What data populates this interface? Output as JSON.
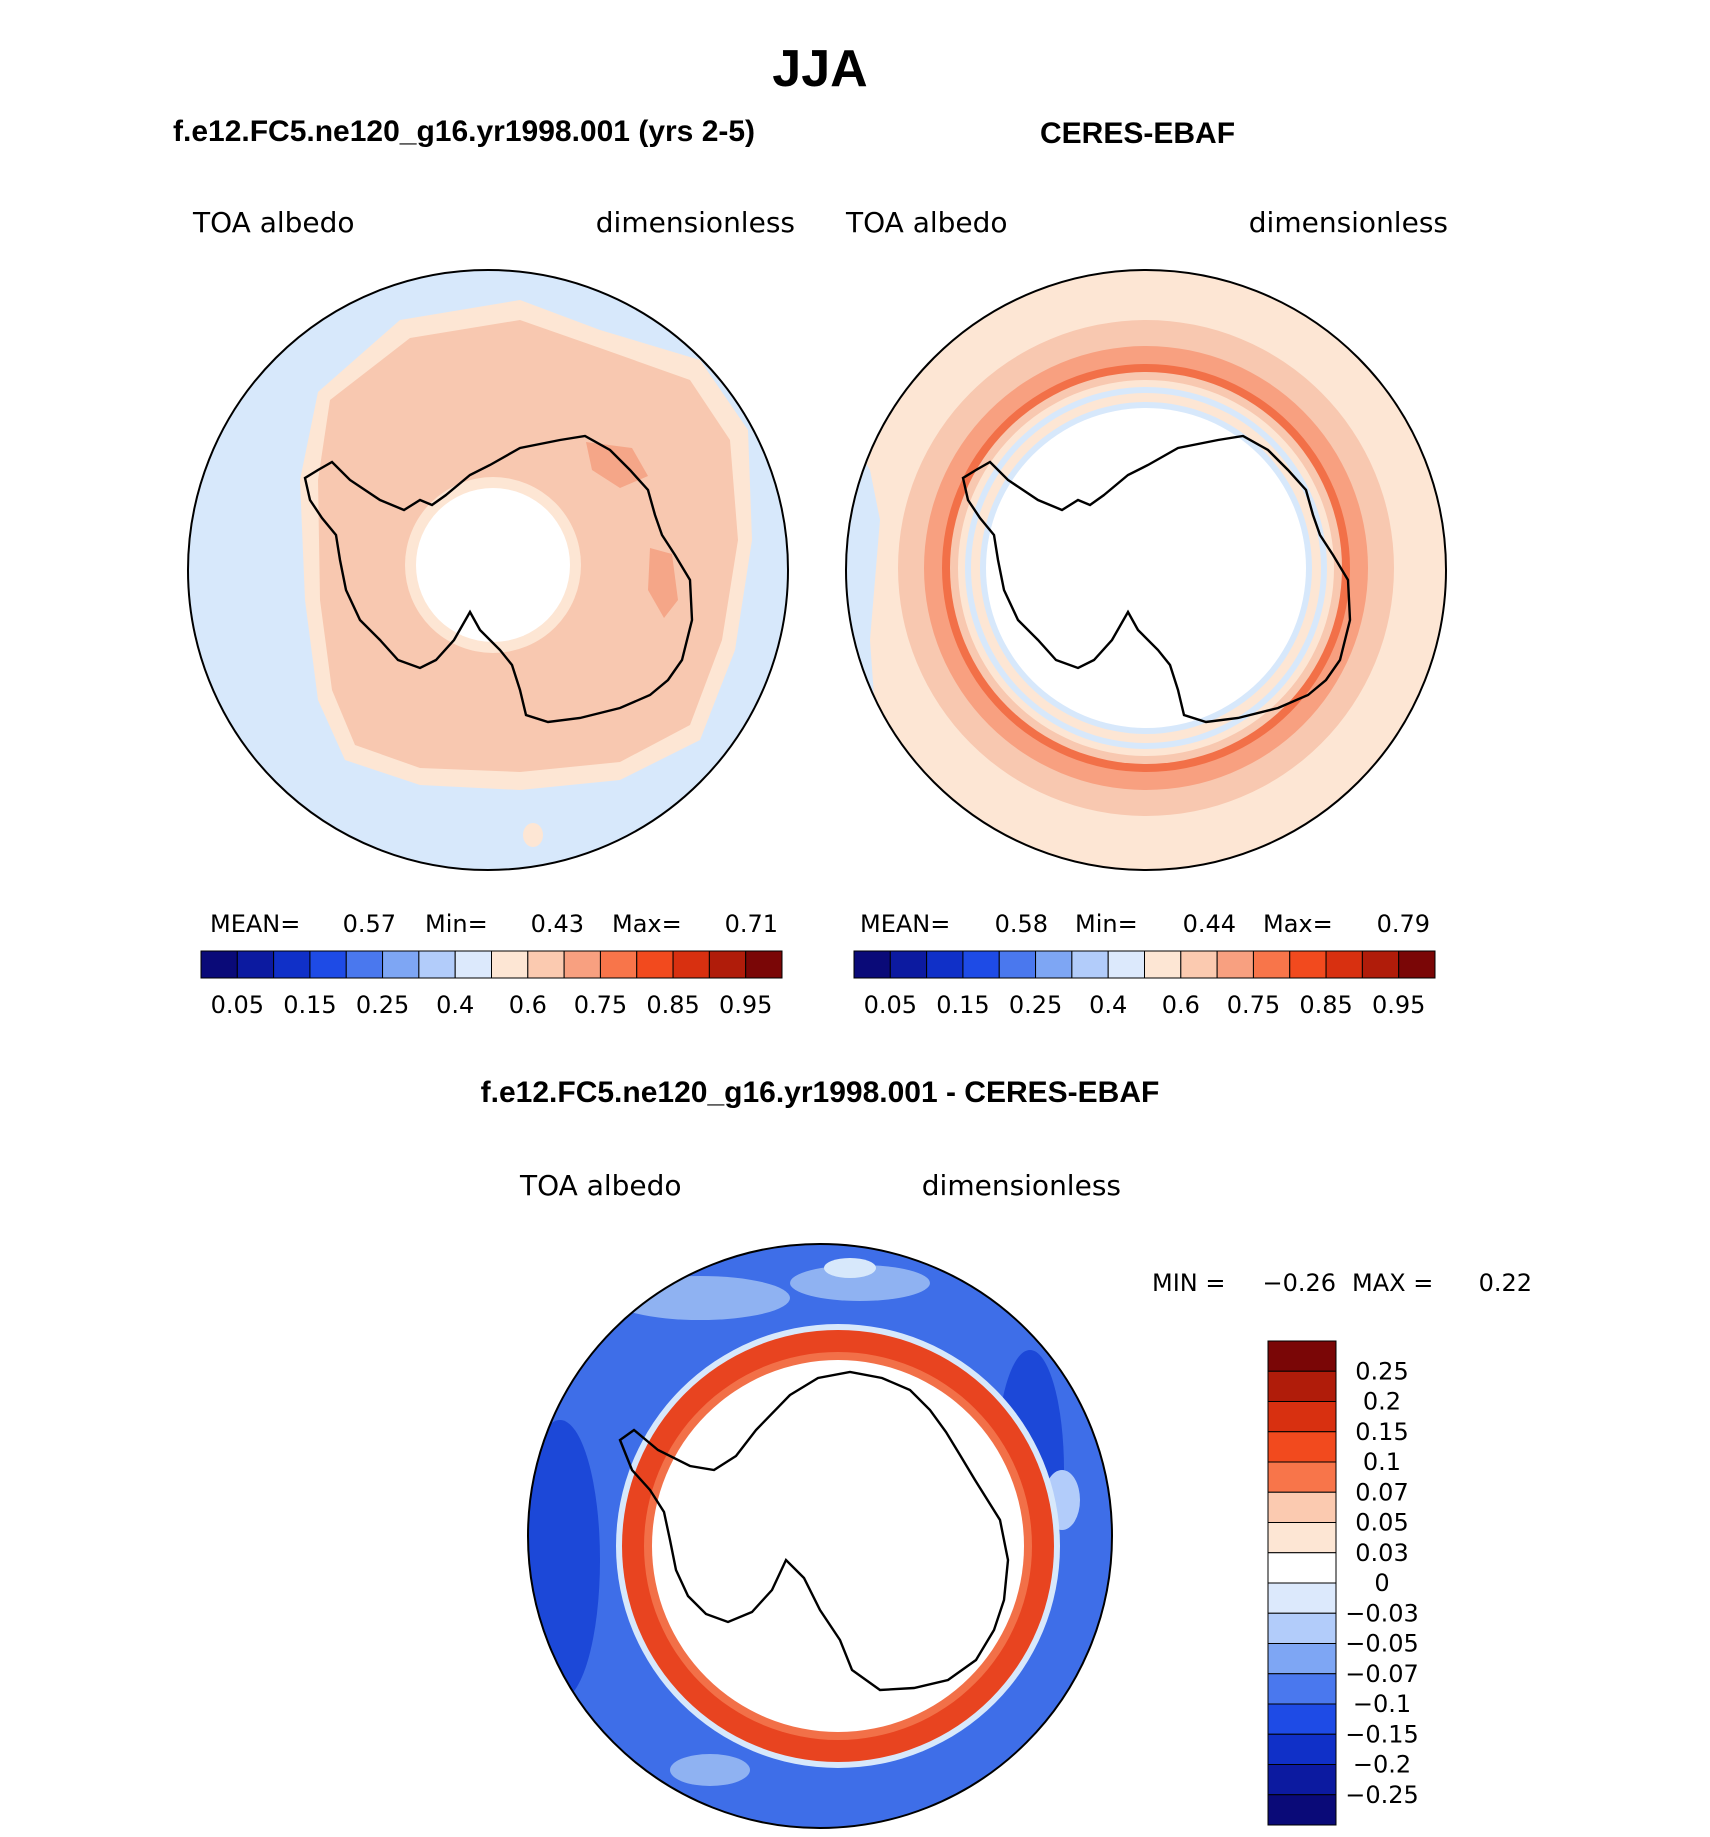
{
  "page_title": "JJA",
  "panels": [
    {
      "title": "f.e12.FC5.ne120_g16.yr1998.001 (yrs 2-5)",
      "variable": "TOA albedo",
      "units": "dimensionless",
      "stats": {
        "mean_label": "MEAN=",
        "mean": "0.57",
        "min_label": "Min=",
        "min": "0.43",
        "max_label": "Max=",
        "max": "0.71"
      }
    },
    {
      "title": "CERES-EBAF",
      "variable": "TOA albedo",
      "units": "dimensionless",
      "stats": {
        "mean_label": "MEAN=",
        "mean": "0.58",
        "min_label": "Min=",
        "min": "0.44",
        "max_label": "Max=",
        "max": "0.79"
      }
    }
  ],
  "abs_colorbar": {
    "colors": [
      "#0a0a78",
      "#0c1aa0",
      "#1030c8",
      "#1e4be6",
      "#4a78ee",
      "#7ea6f4",
      "#b2ccfa",
      "#dce9fc",
      "#fde6d4",
      "#fbcab0",
      "#f8a080",
      "#f8754a",
      "#f24a1e",
      "#d83010",
      "#b01c0a",
      "#7a0606"
    ],
    "labels": [
      "0.05",
      "0.15",
      "0.25",
      "0.4",
      "0.6",
      "0.75",
      "0.85",
      "0.95"
    ]
  },
  "diff_panel": {
    "title": "f.e12.FC5.ne120_g16.yr1998.001 - CERES-EBAF",
    "variable": "TOA albedo",
    "units": "dimensionless",
    "min_label": "MIN =",
    "min": "−0.26",
    "max_label": "MAX =",
    "max": "0.22"
  },
  "diff_colorbar": {
    "colors": [
      "#7a0606",
      "#b01c0a",
      "#d83010",
      "#f24a1e",
      "#f8754a",
      "#fbcab0",
      "#fde6d4",
      "#ffffff",
      "#dce9fc",
      "#b2ccfa",
      "#7ea6f4",
      "#4a78ee",
      "#1e4be6",
      "#1030c8",
      "#0c1aa0",
      "#0a0a78"
    ],
    "labels": [
      "0.25",
      "0.2",
      "0.15",
      "0.1",
      "0.07",
      "0.05",
      "0.03",
      "0",
      "−0.03",
      "−0.05",
      "−0.07",
      "−0.1",
      "−0.15",
      "−0.2",
      "−0.25"
    ]
  },
  "colors": {
    "light_blue": "#d7e8fb",
    "pale_peach": "#fde6d4",
    "salmon": "#f8c8b0",
    "orange": "#f89a78",
    "red": "#ee4a22",
    "ring_red": "#e84420",
    "blue_mid": "#3e6ee8",
    "blue_dark": "#1c48d8",
    "blue_light": "#8fb2f2"
  }
}
